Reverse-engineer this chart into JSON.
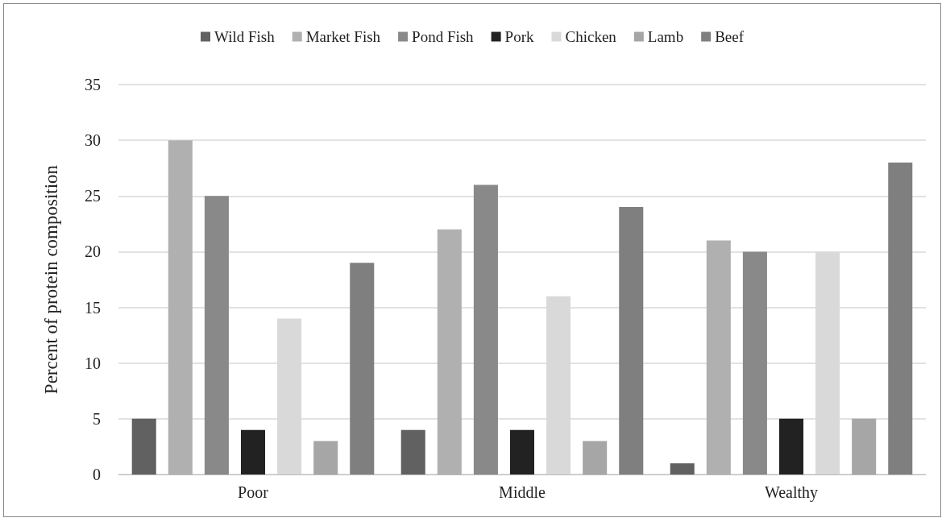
{
  "chart_data": {
    "type": "bar",
    "ylabel": "Percent of protein composition",
    "categories": [
      "Poor",
      "Middle",
      "Wealthy"
    ],
    "series": [
      {
        "name": "Wild Fish",
        "color": "#616161",
        "values": [
          5,
          4,
          1
        ]
      },
      {
        "name": "Market Fish",
        "color": "#b0b0b0",
        "values": [
          30,
          22,
          21
        ]
      },
      {
        "name": "Pond Fish",
        "color": "#898989",
        "values": [
          25,
          26,
          20
        ]
      },
      {
        "name": "Pork",
        "color": "#222222",
        "values": [
          4,
          4,
          5
        ]
      },
      {
        "name": "Chicken",
        "color": "#d9d9d9",
        "values": [
          14,
          16,
          20
        ]
      },
      {
        "name": "Lamb",
        "color": "#a6a6a6",
        "values": [
          3,
          3,
          5
        ]
      },
      {
        "name": "Beef",
        "color": "#7f7f7f",
        "values": [
          19,
          24,
          28
        ]
      }
    ],
    "ylim": [
      0,
      35
    ],
    "yticks": [
      0,
      5,
      10,
      15,
      20,
      25,
      30,
      35
    ],
    "grid": "y",
    "legend": "top"
  }
}
